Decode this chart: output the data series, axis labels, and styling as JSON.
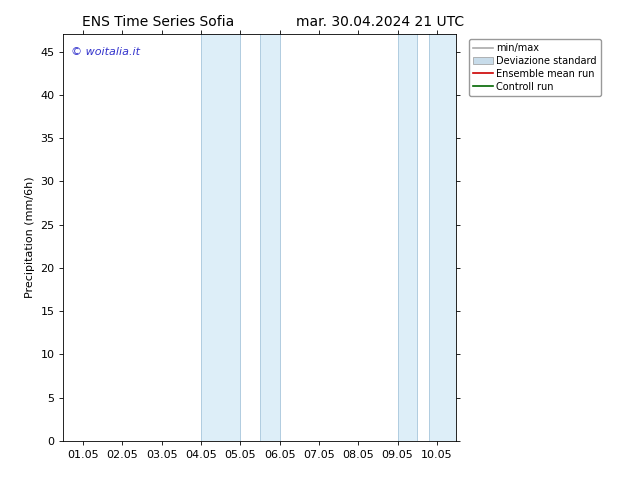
{
  "title_left": "ENS Time Series Sofia",
  "title_right": "mar. 30.04.2024 21 UTC",
  "ylabel": "Precipitation (mm/6h)",
  "xlabel": "",
  "xlim": [
    -0.5,
    9.5
  ],
  "ylim": [
    0,
    47
  ],
  "yticks": [
    0,
    5,
    10,
    15,
    20,
    25,
    30,
    35,
    40,
    45
  ],
  "xtick_labels": [
    "01.05",
    "02.05",
    "03.05",
    "04.05",
    "05.05",
    "06.05",
    "07.05",
    "08.05",
    "09.05",
    "10.05"
  ],
  "xtick_positions": [
    0,
    1,
    2,
    3,
    4,
    5,
    6,
    7,
    8,
    9
  ],
  "shaded_regions": [
    {
      "xmin": 3.0,
      "xmax": 4.0,
      "color": "#ddeef8"
    },
    {
      "xmin": 4.5,
      "xmax": 5.0,
      "color": "#ddeef8"
    },
    {
      "xmin": 8.0,
      "xmax": 8.5,
      "color": "#ddeef8"
    },
    {
      "xmin": 8.8,
      "xmax": 9.5,
      "color": "#ddeef8"
    }
  ],
  "shade_border_color": "#b0cce0",
  "background_color": "#ffffff",
  "plot_bg_color": "#ffffff",
  "watermark_text": "© woitalia.it",
  "watermark_color": "#3333cc",
  "legend_entries": [
    {
      "label": "min/max",
      "color": "#aaaaaa",
      "lw": 1.2,
      "style": "solid"
    },
    {
      "label": "Deviazione standard",
      "color": "#c8dcea",
      "lw": 6,
      "style": "solid"
    },
    {
      "label": "Ensemble mean run",
      "color": "#cc0000",
      "lw": 1.2,
      "style": "solid"
    },
    {
      "label": "Controll run",
      "color": "#006600",
      "lw": 1.2,
      "style": "solid"
    }
  ],
  "tick_fontsize": 8,
  "label_fontsize": 8,
  "title_fontsize": 10
}
